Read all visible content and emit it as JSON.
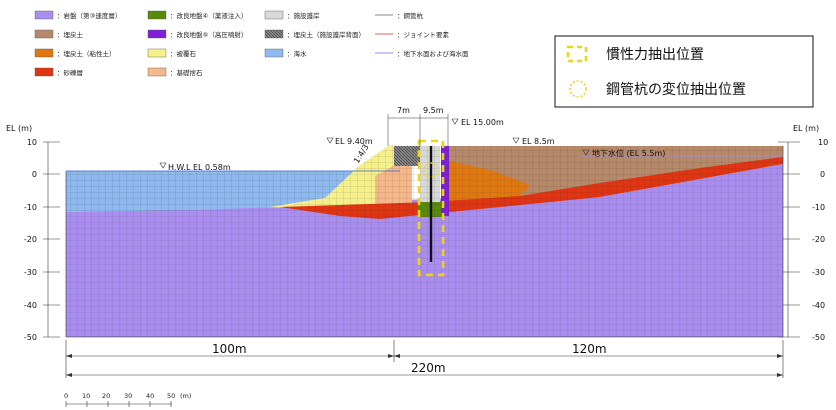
{
  "legend": {
    "items": [
      {
        "label": "：岩盤（第③速度層）",
        "color": "#a98ef0"
      },
      {
        "label": "：改良地盤④（薬液注入）",
        "color": "#5a8a0c"
      },
      {
        "label": "：施設護岸",
        "color": "#d8d8d8"
      },
      {
        "label": "：鋼管杭",
        "color": "#888888"
      },
      {
        "label": "：埋戻土",
        "color": "#b5896a"
      },
      {
        "label": "：改良地盤⑤（高圧噴射）",
        "color": "#7f1fd6"
      },
      {
        "label": "：埋戻土（施設護岸背面）",
        "color": "#707070"
      },
      {
        "label": "：ジョイント要素",
        "color": "#e06060"
      },
      {
        "label": "：埋戻土（粘性土）",
        "color": "#e07812"
      },
      {
        "label": "：被覆石",
        "color": "#f5f08a"
      },
      {
        "label": "：海水",
        "color": "#8fbaf0"
      },
      {
        "label": "：地下水面および海水面",
        "color": "#9c8ef5"
      },
      {
        "label": "：砂礫層",
        "color": "#e03412"
      },
      {
        "label": "：基礎捨石",
        "color": "#f5b88a"
      }
    ]
  },
  "callout": {
    "inertia_label": "慣性力抽出位置",
    "displacement_label": "鋼管杭の変位抽出位置",
    "inertia_color": "#f0d418",
    "displacement_color": "#f0d418"
  },
  "axis": {
    "title_left": "EL (m)",
    "title_right": "EL (m)",
    "ticks": [
      "10",
      "0",
      "-10",
      "-20",
      "-30",
      "-40",
      "-50"
    ]
  },
  "annotations": {
    "hwl": "H.W.L EL 0.58m",
    "el_940": "EL 9.40m",
    "slope": "1:4/3",
    "dim_7m": "7m",
    "dim_95m": "9.5m",
    "el_1500": "EL 15.00m",
    "el_85": "EL 8.5m",
    "groundwater": "地下水位 (EL 5.5m)"
  },
  "dimensions": {
    "left": "100m",
    "right": "120m",
    "total": "220m"
  },
  "scale": {
    "ticks": [
      "0",
      "10",
      "20",
      "30",
      "40",
      "50"
    ],
    "unit": "(m)"
  }
}
